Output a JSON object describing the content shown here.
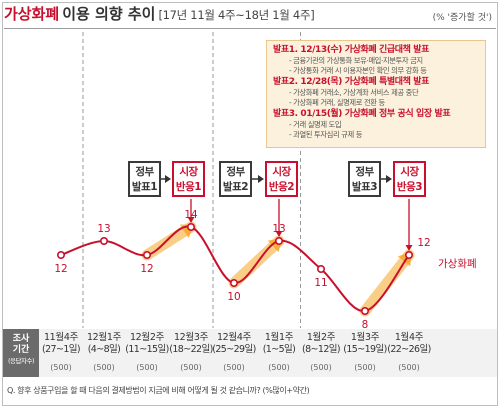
{
  "header": {
    "title_highlight": "가상화폐",
    "title_rest": "이용 의향 추이",
    "period": "[17년 11월 4주~18년 1월 4주]",
    "unit": "(% '증가할 것')"
  },
  "announcements": [
    {
      "title": "발표1. 12/13(수) 가상화폐 긴급대책 발표",
      "details": [
        "- 금융기관의 가상통화 보유·매입·지분투자 금지",
        "- 가상통화 거래 시 이용자본인 확인 의무 강화 등"
      ]
    },
    {
      "title": "발표2. 12/28(목) 가상화폐 특별대책 발표",
      "details": [
        "- 가상화폐 거래소, 가상계좌 서비스 제공 중단",
        "- 가상화폐 거래, 실명제로 전환 등"
      ]
    },
    {
      "title": "발표3. 01/15(월) 가상화폐 정부 공식 입장 발표",
      "details": [
        "- 거래 실명제 도입",
        "- 과열된 투자심리 규제 등"
      ]
    }
  ],
  "events": [
    {
      "line1": "정부",
      "line2": "발표1",
      "kind": "gov"
    },
    {
      "line1": "시장",
      "line2": "반응1",
      "kind": "market"
    },
    {
      "line1": "정부",
      "line2": "발표2",
      "kind": "gov"
    },
    {
      "line1": "시장",
      "line2": "반응2",
      "kind": "market"
    },
    {
      "line1": "정부",
      "line2": "발표3",
      "kind": "gov"
    },
    {
      "line1": "시장",
      "line2": "반응3",
      "kind": "market"
    }
  ],
  "axis_label": {
    "line1": "조사",
    "line2": "기간",
    "line3": "(응답자수)"
  },
  "periods": [
    {
      "week": "11월4주",
      "dates": "(27~1일)",
      "n": "(500)"
    },
    {
      "week": "12월1주",
      "dates": "(4~8일)",
      "n": "(500)"
    },
    {
      "week": "12월2주",
      "dates": "(11~15일)",
      "n": "(500)"
    },
    {
      "week": "12월3주",
      "dates": "(18~22일)",
      "n": "(500)"
    },
    {
      "week": "12월4주",
      "dates": "(25~29일)",
      "n": "(500)"
    },
    {
      "week": "1월1주",
      "dates": "(1~5일)",
      "n": "(500)"
    },
    {
      "week": "1월2주",
      "dates": "(8~12일)",
      "n": "(500)"
    },
    {
      "week": "1월3주",
      "dates": "(15~19일)",
      "n": "(500)"
    },
    {
      "week": "1월4주",
      "dates": "(22~26일)",
      "n": "(500)"
    }
  ],
  "question": "Q. 향후 상품구입을 할 때 다음의 결제방법이 지금에 비해 어떻게 될 것 같습니까? (%많이+약간)",
  "chart_data": {
    "type": "line",
    "categories": [
      "11월4주",
      "12월1주",
      "12월2주",
      "12월3주",
      "12월4주",
      "1월1주",
      "1월2주",
      "1월3주",
      "1월4주"
    ],
    "series": [
      {
        "name": "가상화폐",
        "values": [
          12,
          13,
          12,
          14,
          10,
          13,
          11,
          8,
          12
        ]
      }
    ],
    "ylim": [
      6,
      16
    ],
    "line_color": "#c8102e",
    "highlight_color": "#f5a623",
    "grid": false,
    "reaction_segments": [
      [
        2,
        3
      ],
      [
        4,
        5
      ],
      [
        7,
        8
      ]
    ],
    "event_dividers_after": [
      1,
      4,
      6
    ]
  }
}
